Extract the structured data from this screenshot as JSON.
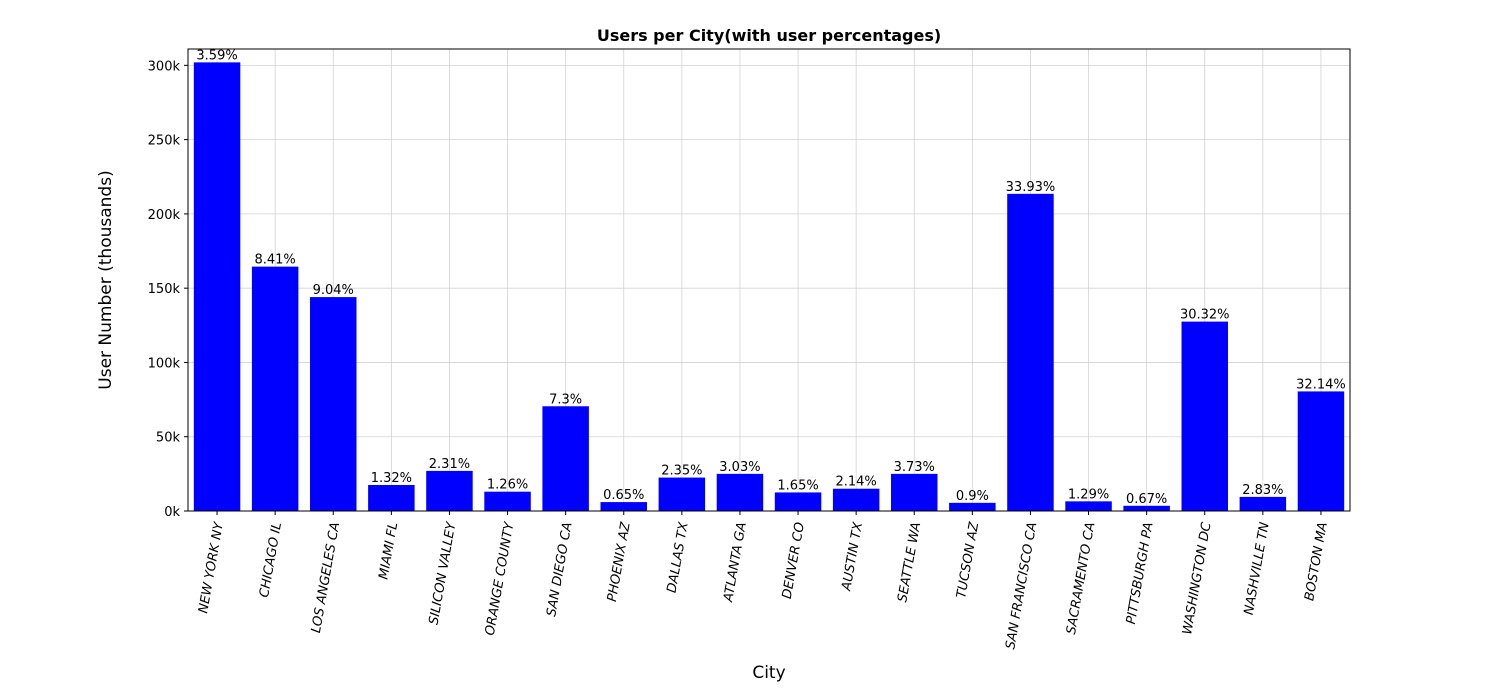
{
  "chart_data": {
    "type": "bar",
    "title": "Users per City(with user percentages)",
    "xlabel": "City",
    "ylabel": "User Number (thousands)",
    "categories": [
      "NEW YORK NY",
      "CHICAGO IL",
      "LOS ANGELES CA",
      "MIAMI FL",
      "SILICON VALLEY",
      "ORANGE COUNTY",
      "SAN DIEGO CA",
      "PHOENIX AZ",
      "DALLAS TX",
      "ATLANTA GA",
      "DENVER CO",
      "AUSTIN TX",
      "SEATTLE WA",
      "TUCSON AZ",
      "SAN FRANCISCO CA",
      "SACRAMENTO CA",
      "PITTSBURGH PA",
      "WASHINGTON DC",
      "NASHVILLE TN",
      "BOSTON MA"
    ],
    "values": [
      302000,
      164500,
      144000,
      17500,
      27000,
      13000,
      70500,
      6000,
      22500,
      25000,
      12500,
      15000,
      25000,
      5500,
      213500,
      6500,
      3500,
      127500,
      9500,
      80500
    ],
    "labels": [
      "3.59%",
      "8.41%",
      "9.04%",
      "1.32%",
      "2.31%",
      "1.26%",
      "7.3%",
      "0.65%",
      "2.35%",
      "3.03%",
      "1.65%",
      "2.14%",
      "3.73%",
      "0.9%",
      "33.93%",
      "1.29%",
      "0.67%",
      "30.32%",
      "2.83%",
      "32.14%"
    ],
    "yticks": [
      0,
      50000,
      100000,
      150000,
      200000,
      250000,
      300000
    ],
    "ytick_labels": [
      "0k",
      "50k",
      "100k",
      "150k",
      "200k",
      "250k",
      "300k"
    ],
    "ylim": [
      0,
      311000
    ],
    "grid": true,
    "bar_color": "#0000ff",
    "grid_color": "#d3d3d3"
  }
}
